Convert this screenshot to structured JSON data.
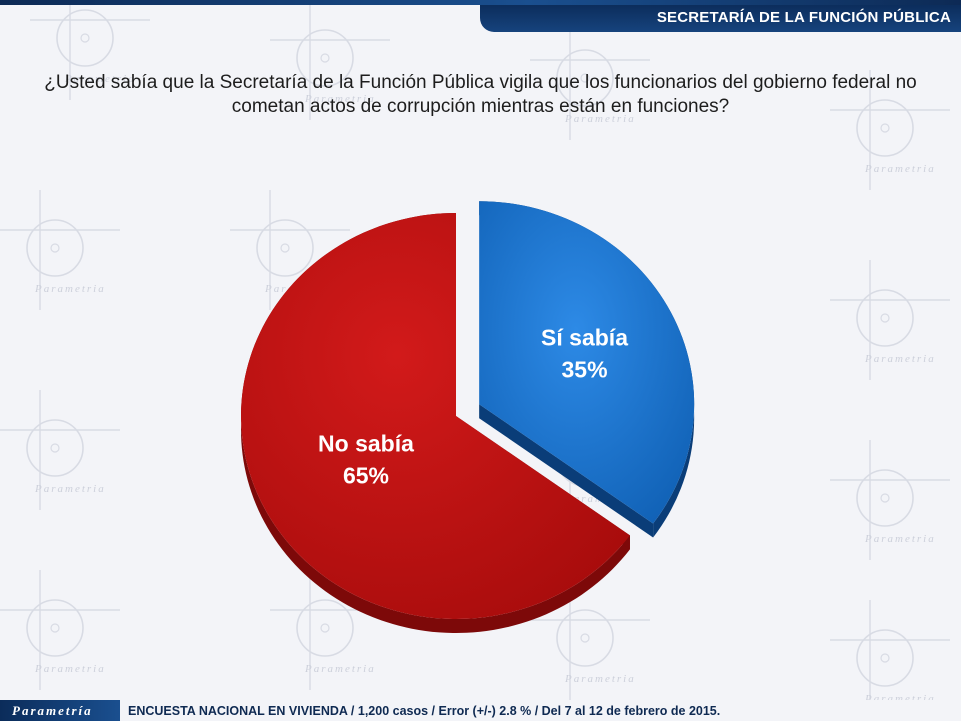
{
  "header": {
    "title": "SECRETARÍA DE LA FUNCIÓN PÚBLICA"
  },
  "question": "¿Usted sabía que la Secretaría de la Función Pública vigila que los funcionarios del gobierno federal no cometan actos de corrupción mientras están en funciones?",
  "background": {
    "watermark_text": "Parametria"
  },
  "chart_data": {
    "type": "pie",
    "title": "",
    "slices": [
      {
        "label": "Sí sabía",
        "value": 35,
        "value_label": "35%",
        "color": "#1f7ad4",
        "exploded": true
      },
      {
        "label": "No sabía",
        "value": 65,
        "value_label": "65%",
        "color": "#c41213",
        "exploded": false
      }
    ],
    "start_angle": "12 o'clock, clockwise",
    "style": "3D"
  },
  "footer": {
    "logo_text": "Parametría",
    "source": "ENCUESTA NACIONAL EN VIVIENDA / 1,200 casos / Error (+/-) 2.8 % / Del 7 al 12 de febrero de 2015."
  }
}
